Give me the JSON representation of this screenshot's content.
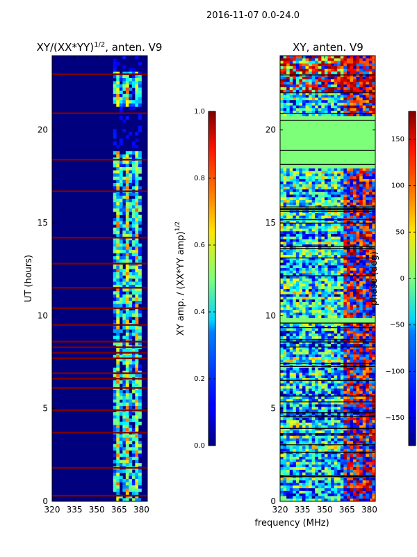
{
  "figure": {
    "suptitle": "2016-11-07 0.0-24.0",
    "xlabel": "frequency (MHz)"
  },
  "chart_data": [
    {
      "type": "heatmap",
      "title_main": "XY/(XX*YY)",
      "title_sup": "1/2",
      "title_rest": ", anten. V9",
      "ylabel": "UT (hours)",
      "xlim": [
        320,
        384
      ],
      "ylim": [
        0,
        24
      ],
      "x_ticks": [
        "320",
        "335",
        "350",
        "365",
        "380"
      ],
      "y_ticks": [
        "0",
        "5",
        "10",
        "15",
        "20"
      ],
      "x_tick_values": [
        320,
        335,
        350,
        365,
        380
      ],
      "y_tick_values": [
        0,
        5,
        10,
        15,
        20
      ],
      "colorbar": {
        "label_main": "XY amp. / (XX*YY amp)",
        "label_sup": "1/2",
        "range": [
          0.0,
          1.0
        ],
        "ticks": [
          "0.0",
          "0.2",
          "0.4",
          "0.6",
          "0.8",
          "1.0"
        ],
        "tick_values": [
          0.0,
          0.2,
          0.4,
          0.6,
          0.8,
          1.0
        ]
      },
      "bright_band_mhz": [
        361,
        380
      ],
      "flagged_ut_hours": [
        0.3,
        1.8,
        3.7,
        4.9,
        6.1,
        6.6,
        6.9,
        7.7,
        8.0,
        8.3,
        8.6,
        9.5,
        10.4,
        11.5,
        12.8,
        14.2,
        16.7,
        18.4,
        20.9,
        23.0
      ]
    },
    {
      "type": "heatmap",
      "title_main": "XY, anten. V9",
      "xlim": [
        320,
        384
      ],
      "ylim": [
        0,
        24
      ],
      "x_ticks": [
        "320",
        "335",
        "350",
        "365",
        "380"
      ],
      "y_ticks": [
        "0",
        "5",
        "10",
        "15",
        "20"
      ],
      "x_tick_values": [
        320,
        335,
        350,
        365,
        380
      ],
      "y_tick_values": [
        0,
        5,
        10,
        15,
        20
      ],
      "colorbar": {
        "label_main": "phase (deg)",
        "range": [
          -180,
          180
        ],
        "ticks": [
          "150",
          "100",
          "50",
          "0",
          "−50",
          "−100",
          "−150"
        ],
        "tick_values": [
          150,
          100,
          50,
          0,
          -50,
          -100,
          -150
        ]
      },
      "flat_ut_ranges": [
        [
          18.0,
          20.7
        ],
        [
          9.6,
          9.9
        ]
      ]
    }
  ],
  "colors": {
    "jet_low": "#00007f",
    "jet_high": "#7f0000",
    "flag_line": "#000000"
  }
}
